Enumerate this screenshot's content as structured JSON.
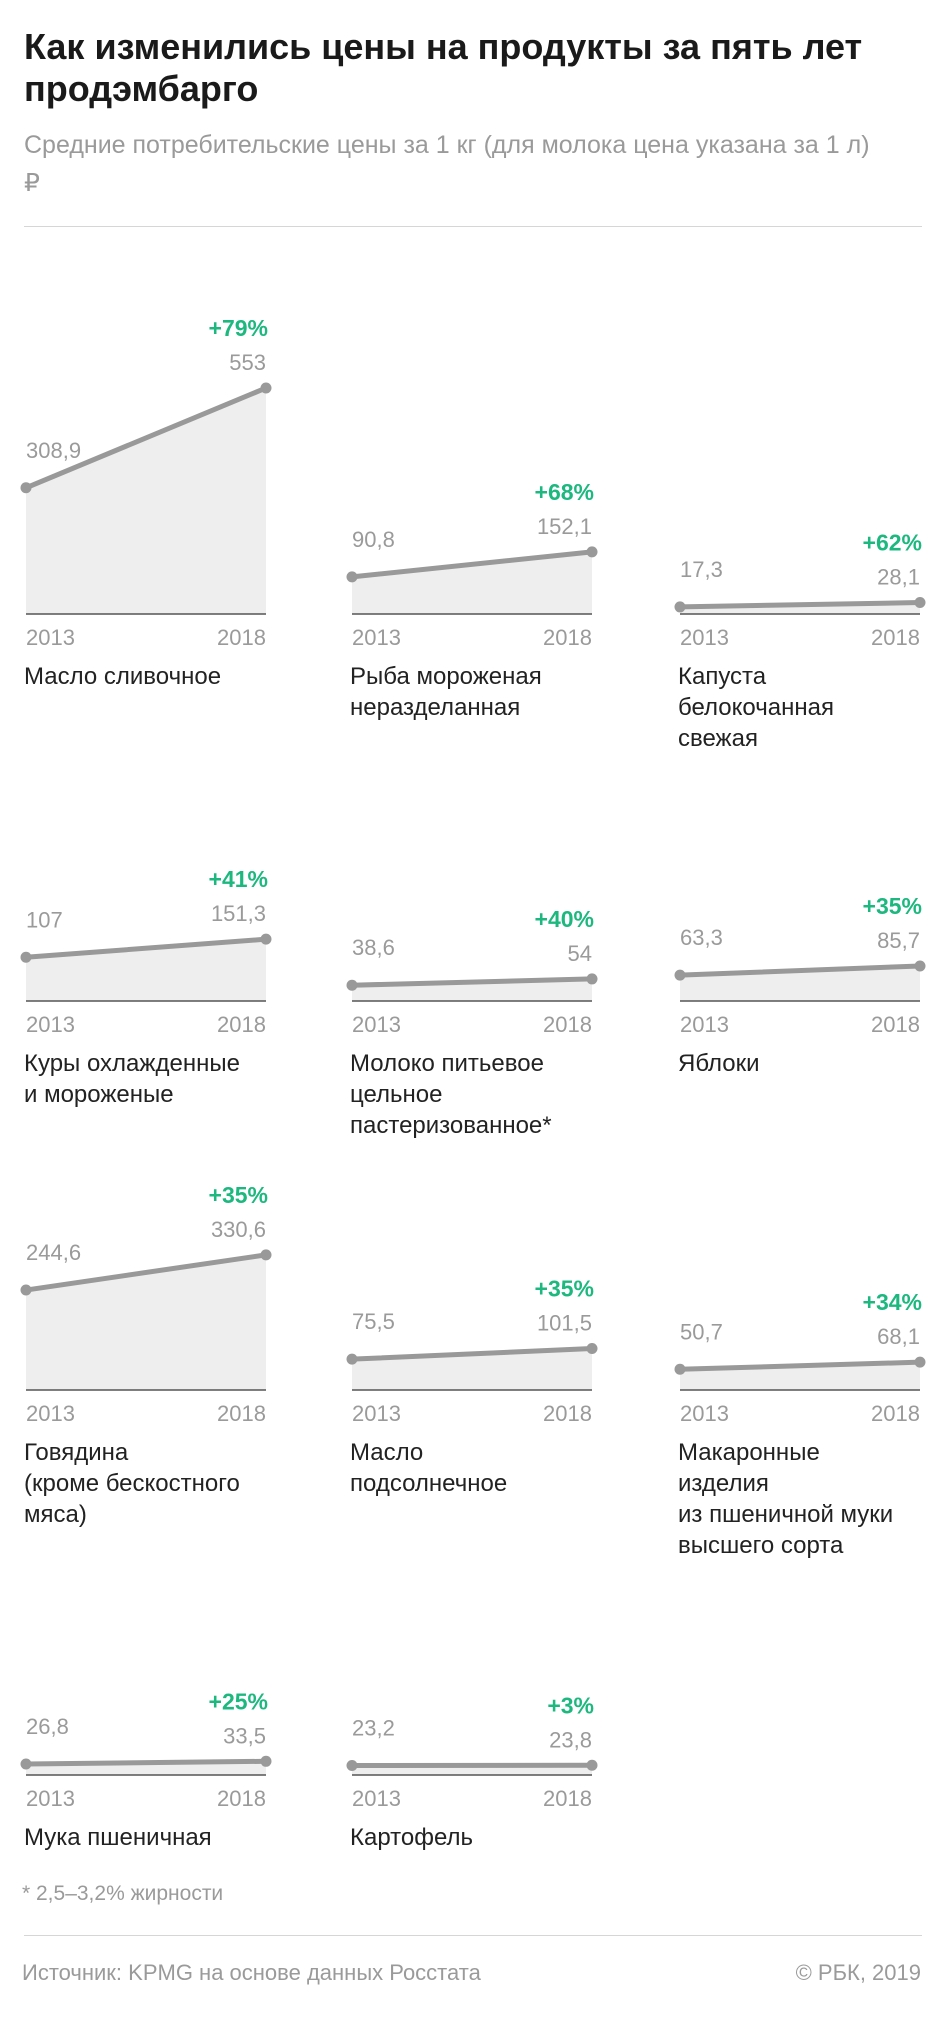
{
  "header": {
    "title": "Как изменились цены на продукты за пять лет продэмбарго",
    "subtitle": "Средние потребительские цены за 1 кг (для молока цена указана за 1 л)",
    "unit": "₽"
  },
  "footer": {
    "footnote": "* 2,5–3,2% жирности",
    "source": "Источник: KPMG на основе данных Росстата",
    "copyright": "© РБК, 2019"
  },
  "colors": {
    "line": "#999999",
    "area": "#eeeeee",
    "axis": "#555555",
    "change": "#1db87f",
    "value": "#9a9a9a",
    "label": "#222222"
  },
  "chart_data": {
    "type": "line",
    "scale": "shared",
    "ylim": [
      0,
      553
    ],
    "x": [
      "2013",
      "2018"
    ],
    "series": [
      {
        "label": [
          "Масло сливочное"
        ],
        "x_labels": [
          "2013",
          "2018"
        ],
        "values": [
          308.9,
          553
        ],
        "value_labels": [
          "308,9",
          "553"
        ],
        "change": "+79%"
      },
      {
        "label": [
          "Рыба мороженая",
          "неразделанная"
        ],
        "x_labels": [
          "2013",
          "2018"
        ],
        "values": [
          90.8,
          152.1
        ],
        "value_labels": [
          "90,8",
          "152,1"
        ],
        "change": "+68%"
      },
      {
        "label": [
          "Капуста",
          "белокочанная",
          "свежая"
        ],
        "x_labels": [
          "2013",
          "2018"
        ],
        "values": [
          17.3,
          28.1
        ],
        "value_labels": [
          "17,3",
          "28,1"
        ],
        "change": "+62%"
      },
      {
        "label": [
          "Куры охлажденные",
          "и мороженые"
        ],
        "x_labels": [
          "2013",
          "2018"
        ],
        "values": [
          107,
          151.3
        ],
        "value_labels": [
          "107",
          "151,3"
        ],
        "change": "+41%"
      },
      {
        "label": [
          "Молоко питьевое",
          "цельное",
          "пастеризованное*"
        ],
        "x_labels": [
          "2013",
          "2018"
        ],
        "values": [
          38.6,
          54
        ],
        "value_labels": [
          "38,6",
          "54"
        ],
        "change": "+40%"
      },
      {
        "label": [
          "Яблоки"
        ],
        "x_labels": [
          "2013",
          "2018"
        ],
        "values": [
          63.3,
          85.7
        ],
        "value_labels": [
          "63,3",
          "85,7"
        ],
        "change": "+35%"
      },
      {
        "label": [
          "Говядина",
          "(кроме бескостного",
          "мяса)"
        ],
        "x_labels": [
          "2013",
          "2018"
        ],
        "values": [
          244.6,
          330.6
        ],
        "value_labels": [
          "244,6",
          "330,6"
        ],
        "change": "+35%"
      },
      {
        "label": [
          "Масло",
          "подсолнечное"
        ],
        "x_labels": [
          "2013",
          "2018"
        ],
        "values": [
          75.5,
          101.5
        ],
        "value_labels": [
          "75,5",
          "101,5"
        ],
        "change": "+35%"
      },
      {
        "label": [
          "Макаронные",
          "изделия",
          "из пшеничной муки",
          "высшего сорта"
        ],
        "x_labels": [
          "2013",
          "2018"
        ],
        "values": [
          50.7,
          68.1
        ],
        "value_labels": [
          "50,7",
          "68,1"
        ],
        "change": "+34%"
      },
      {
        "label": [
          "Мука пшеничная"
        ],
        "x_labels": [
          "2013",
          "2018"
        ],
        "values": [
          26.8,
          33.5
        ],
        "value_labels": [
          "26,8",
          "33,5"
        ],
        "change": "+25%"
      },
      {
        "label": [
          "Картофель"
        ],
        "x_labels": [
          "2013",
          "2018"
        ],
        "values": [
          23.2,
          23.8
        ],
        "value_labels": [
          "23,2",
          "23,8"
        ],
        "change": "+3%"
      }
    ]
  }
}
